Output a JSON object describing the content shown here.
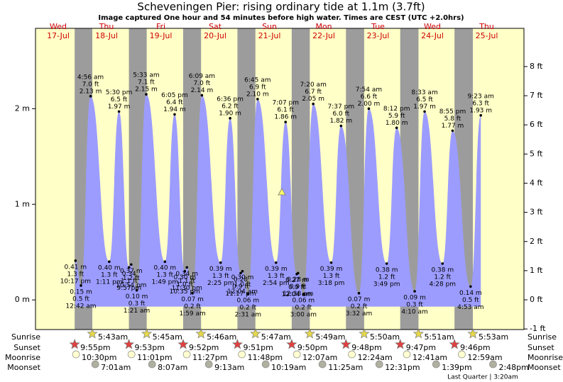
{
  "title": "Scheveningen Pier: rising  ordinary tide at 1.1m (3.7ft)",
  "subtitle": "Image captured One hour and 54 minutes before high water. Times are CEST (UTC +2.0hrs)",
  "ylim": [
    -0.31,
    2.84
  ],
  "yticks": [
    {
      "value": 0,
      "label": "0 m"
    },
    {
      "value": 1,
      "label": "1 m"
    },
    {
      "value": 2,
      "label": "2 m"
    }
  ],
  "y2lim": [
    -1.02,
    9.31
  ],
  "y2ticks": [
    {
      "value": -1,
      "label": "-1 ft"
    },
    {
      "value": 0,
      "label": "0 ft"
    },
    {
      "value": 1,
      "label": "1 ft"
    },
    {
      "value": 2,
      "label": "2 ft"
    },
    {
      "value": 3,
      "label": "3 ft"
    },
    {
      "value": 4,
      "label": "4 ft"
    },
    {
      "value": 5,
      "label": "5 ft"
    },
    {
      "value": 6,
      "label": "6 ft"
    },
    {
      "value": 7,
      "label": "7 ft"
    },
    {
      "value": 8,
      "label": "8 ft"
    }
  ],
  "rows": {
    "sunrise": "Sunrise",
    "sunset": "Sunset",
    "moonrise": "Moonrise",
    "moonset": "Moonset"
  },
  "moon_phase": "Last Quarter | 3:20am",
  "days": [
    {
      "name": "Wed",
      "date": "17-Jul",
      "sunset": "9:55pm",
      "moonrise": "10:30pm",
      "tides": [
        {
          "time": "10:17 pm",
          "ft": "1.3 ft",
          "m": 0.41,
          "m_label": "0.41 m",
          "kind": "low"
        }
      ]
    },
    {
      "name": "Thu",
      "date": "18-Jul",
      "sunrise": "5:43am",
      "sunset": "9:53pm",
      "moonrise": "11:01pm",
      "moonset": "7:01am",
      "tides": [
        {
          "time": "12:42 am",
          "ft": "0.5 ft",
          "m": 0.15,
          "m_label": "0.15 m",
          "kind": "low"
        },
        {
          "time": "4:56 am",
          "ft": "7.0 ft",
          "m": 2.13,
          "m_label": "2.13 m",
          "kind": "high"
        },
        {
          "time": "1:11 pm",
          "ft": "1.3 ft",
          "m": 0.4,
          "m_label": "0.40 m",
          "kind": "low"
        },
        {
          "time": "5:30 pm",
          "ft": "6.5 ft",
          "m": 1.97,
          "m_label": "1.97 m",
          "kind": "high"
        },
        {
          "time": "9:57pm",
          "ft": "1.1 ft",
          "m": 0.34,
          "m_label": "0.34",
          "kind": "low"
        },
        {
          "time": "10:54 pm",
          "ft": "1.2 ft",
          "m": 0.37,
          "m_label": "0.37 m",
          "kind": "low"
        }
      ]
    },
    {
      "name": "Fri",
      "date": "19-Jul",
      "sunrise": "5:45am",
      "sunset": "9:52pm",
      "moonrise": "11:27pm",
      "moonset": "8:07am",
      "tides": [
        {
          "time": "1:21 am",
          "ft": "0.3 ft",
          "m": 0.1,
          "m_label": "0.10 m",
          "kind": "low"
        },
        {
          "time": "5:33 am",
          "ft": "7.1 ft",
          "m": 2.15,
          "m_label": "2.15 m",
          "kind": "high"
        },
        {
          "time": "1:49 pm",
          "ft": "1.3 ft",
          "m": 0.4,
          "m_label": "0.40 m",
          "kind": "low"
        },
        {
          "time": "6:05 pm",
          "ft": "6.4 ft",
          "m": 1.94,
          "m_label": "1.94 m",
          "kind": "high"
        },
        {
          "time": "10:35 pm",
          "ft": "1.0 ft",
          "m": 0.3,
          "m_label": "0.30 m",
          "kind": "low"
        },
        {
          "time": "11:30 pm",
          "ft": "1.1 ft",
          "m": 0.34,
          "m_label": "0.34 m",
          "kind": "low"
        }
      ]
    },
    {
      "name": "Sat",
      "date": "20-Jul",
      "sunrise": "5:46am",
      "sunset": "9:51pm",
      "moonrise": "11:48pm",
      "moonset": "9:13am",
      "tides": [
        {
          "time": "1:59 am",
          "ft": "0.2 ft",
          "m": 0.07,
          "m_label": "0.07 m",
          "kind": "low"
        },
        {
          "time": "6:09 am",
          "ft": "7.0 ft",
          "m": 2.14,
          "m_label": "2.14 m",
          "kind": "high"
        },
        {
          "time": "2:25 pm",
          "ft": "1.3 ft",
          "m": 0.39,
          "m_label": "0.39 m",
          "kind": "low"
        },
        {
          "time": "6:36 pm",
          "ft": "6.2 ft",
          "m": 1.9,
          "m_label": "1.90 m",
          "kind": "high"
        },
        {
          "time": "11:17 pm",
          "ft": "0.9 ft",
          "m": 0.28,
          "m_label": "0.28",
          "kind": "low"
        }
      ]
    },
    {
      "name": "Sun",
      "date": "21-Jul",
      "sunrise": "5:47am",
      "sunset": "9:50pm",
      "moonset": "10:19am",
      "tides": [
        {
          "time": "12:04 am",
          "ft": "1.0 ft",
          "m": 0.3,
          "m_label": "0.30 m",
          "kind": "low"
        },
        {
          "time": "2:31 am",
          "ft": "0.2 ft",
          "m": 0.06,
          "m_label": "0.06 m",
          "kind": "low"
        },
        {
          "time": "6:45 am",
          "ft": "6.9 ft",
          "m": 2.1,
          "m_label": "2.10 m",
          "kind": "high"
        },
        {
          "time": "2:54 pm",
          "ft": "1.3 ft",
          "m": 0.39,
          "m_label": "0.39 m",
          "kind": "low"
        },
        {
          "time": "7:07 pm",
          "ft": "6.1 ft",
          "m": 1.86,
          "m_label": "1.86 m",
          "kind": "high"
        }
      ]
    },
    {
      "name": "Mon",
      "date": "22-Jul",
      "sunrise": "5:49am",
      "sunset": "9:48pm",
      "moonrise": "12:07am",
      "moonset": "11:25am",
      "tides": [
        {
          "time": "12:04 am",
          "ft": "0.9 ft",
          "m": 0.27,
          "m_label": "0.27 m",
          "kind": "low"
        },
        {
          "time": "12:38 am",
          "ft": "0.9 ft",
          "m": 0.28,
          "m_label": "0.28 m",
          "kind": "low"
        },
        {
          "time": "3:00 am",
          "ft": "0.2 ft",
          "m": 0.06,
          "m_label": "0.06 m",
          "kind": "low"
        },
        {
          "time": "7:20 am",
          "ft": "6.7 ft",
          "m": 2.05,
          "m_label": "2.05 m",
          "kind": "high"
        },
        {
          "time": "3:18 pm",
          "ft": "1.3 ft",
          "m": 0.39,
          "m_label": "0.39 m",
          "kind": "low"
        },
        {
          "time": "7:37 pm",
          "ft": "6.0 ft",
          "m": 1.82,
          "m_label": "1.82 m",
          "kind": "high"
        }
      ]
    },
    {
      "name": "Tue",
      "date": "23-Jul",
      "sunrise": "5:50am",
      "sunset": "9:47pm",
      "moonrise": "12:24am",
      "moonset": "12:31pm",
      "tides": [
        {
          "time": "3:32 am",
          "ft": "0.2 ft",
          "m": 0.07,
          "m_label": "0.07 m",
          "kind": "low"
        },
        {
          "time": "7:54 am",
          "ft": "6.6 ft",
          "m": 2.0,
          "m_label": "2.00 m",
          "kind": "high"
        },
        {
          "time": "3:49 pm",
          "ft": "1.2 ft",
          "m": 0.38,
          "m_label": "0.38 m",
          "kind": "low"
        },
        {
          "time": "8:12 pm",
          "ft": "5.9 ft",
          "m": 1.8,
          "m_label": "1.80 m",
          "kind": "high"
        }
      ]
    },
    {
      "name": "Wed",
      "date": "24-Jul",
      "sunrise": "5:51am",
      "sunset": "9:46pm",
      "moonrise": "12:41am",
      "moonset": "1:39pm",
      "tides": [
        {
          "time": "4:10 am",
          "ft": "0.3 ft",
          "m": 0.09,
          "m_label": "0.09 m",
          "kind": "low"
        },
        {
          "time": "8:33 am",
          "ft": "6.5 ft",
          "m": 1.97,
          "m_label": "1.97 m",
          "kind": "high"
        },
        {
          "time": "4:28 pm",
          "ft": "1.2 ft",
          "m": 0.38,
          "m_label": "0.38 m",
          "kind": "low"
        },
        {
          "time": "8:55 pm",
          "ft": "5.8 ft",
          "m": 1.77,
          "m_label": "1.77 m",
          "kind": "high"
        }
      ]
    },
    {
      "name": "Thu",
      "date": "25-Jul",
      "sunrise": "5:53am",
      "moonrise": "12:59am",
      "moonset": "2:48pm",
      "tides": [
        {
          "time": "4:53 am",
          "ft": "0.5 ft",
          "m": 0.14,
          "m_label": "0.14 m",
          "kind": "low"
        },
        {
          "time": "9:23 am",
          "ft": "6.3 ft",
          "m": 1.93,
          "m_label": "1.93 m",
          "kind": "high"
        }
      ]
    }
  ]
}
